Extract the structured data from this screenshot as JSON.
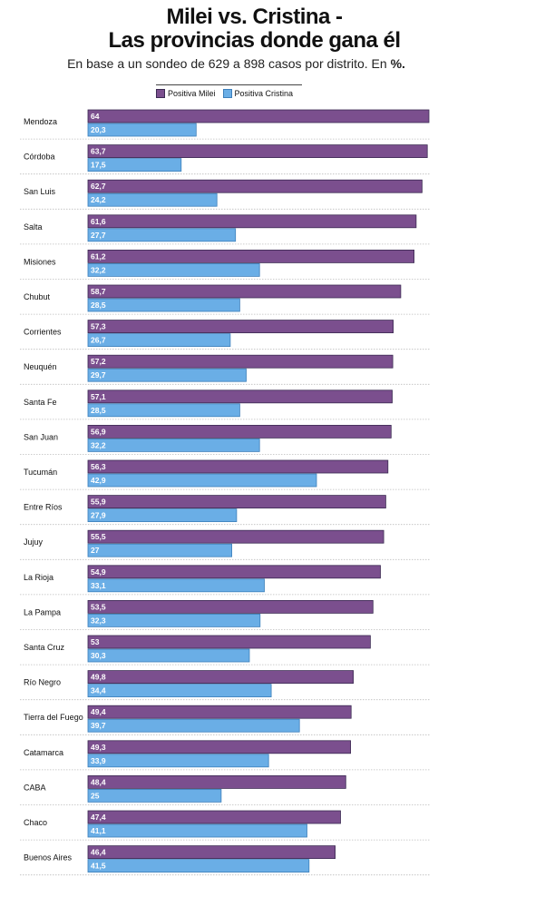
{
  "title_line1": "Milei vs. Cristina -",
  "title_line2": "Las provincias donde gana él",
  "subtitle_prefix": "En base a un sondeo de 629 a 898 casos por distrito. En ",
  "subtitle_unit": "%.",
  "colors": {
    "milei": "#7b4f8e",
    "cristina": "#6aaee6",
    "milei_border": "#3b2a52",
    "cristina_border": "#3d7fba"
  },
  "chart_data": {
    "type": "bar",
    "orientation": "horizontal",
    "title": "Milei vs. Cristina - Las provincias donde gana él",
    "subtitle": "En base a un sondeo de 629 a 898 casos por distrito. En %.",
    "xlim": [
      0,
      64
    ],
    "legend_position": "top",
    "categories": [
      "Mendoza",
      "Córdoba",
      "San Luis",
      "Salta",
      "Misiones",
      "Chubut",
      "Corrientes",
      "Neuquén",
      "Santa Fe",
      "San Juan",
      "Tucumán",
      "Entre Ríos",
      "Jujuy",
      "La Rioja",
      "La Pampa",
      "Santa Cruz",
      "Río Negro",
      "Tierra del Fuego",
      "Catamarca",
      "CABA",
      "Chaco",
      "Buenos Aires"
    ],
    "series": [
      {
        "name": "Positiva Milei",
        "values": [
          64,
          63.7,
          62.7,
          61.6,
          61.2,
          58.7,
          57.3,
          57.2,
          57.1,
          56.9,
          56.3,
          55.9,
          55.5,
          54.9,
          53.5,
          53,
          49.8,
          49.4,
          49.3,
          48.4,
          47.4,
          46.4
        ],
        "labels": [
          "64",
          "63,7",
          "62,7",
          "61,6",
          "61,2",
          "58,7",
          "57,3",
          "57,2",
          "57,1",
          "56,9",
          "56,3",
          "55,9",
          "55,5",
          "54,9",
          "53,5",
          "53",
          "49,8",
          "49,4",
          "49,3",
          "48,4",
          "47,4",
          "46,4"
        ]
      },
      {
        "name": "Positiva Cristina",
        "values": [
          20.3,
          17.5,
          24.2,
          27.7,
          32.2,
          28.5,
          26.7,
          29.7,
          28.5,
          32.2,
          42.9,
          27.9,
          27,
          33.1,
          32.3,
          30.3,
          34.4,
          39.7,
          33.9,
          25,
          41.1,
          41.5
        ],
        "labels": [
          "20,3",
          "17,5",
          "24,2",
          "27,7",
          "32,2",
          "28,5",
          "26,7",
          "29,7",
          "28,5",
          "32,2",
          "42,9",
          "27,9",
          "27",
          "33,1",
          "32,3",
          "30,3",
          "34,4",
          "39,7",
          "33,9",
          "25",
          "41,1",
          "41,5"
        ]
      }
    ]
  }
}
